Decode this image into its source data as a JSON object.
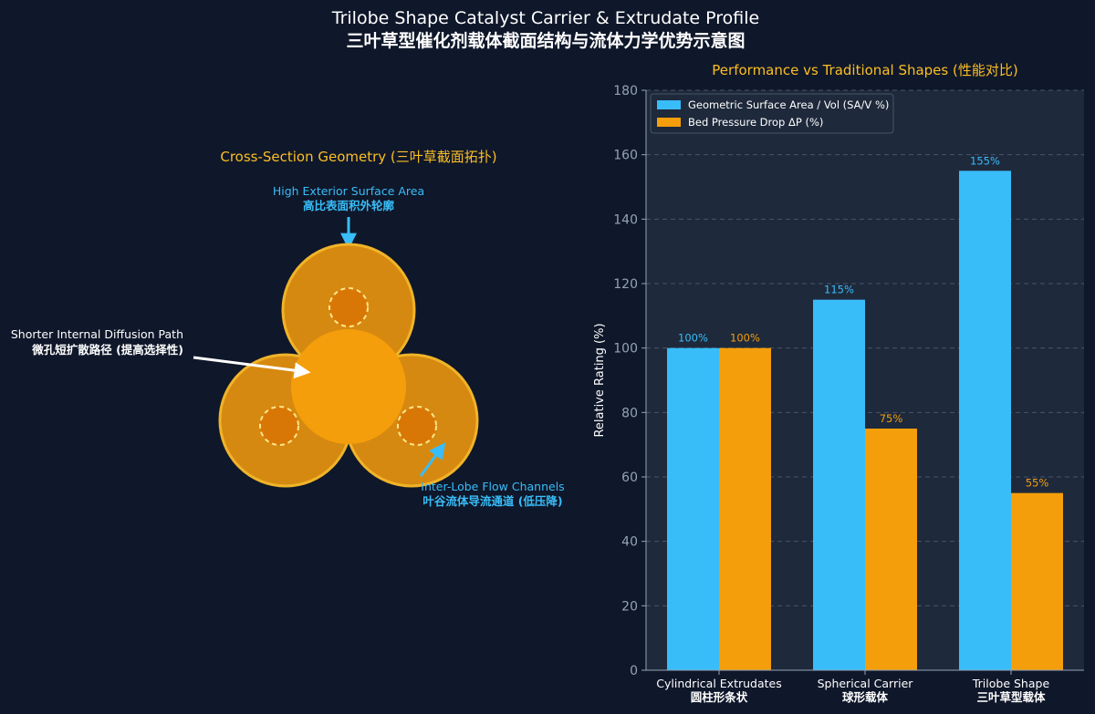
{
  "title": {
    "line1": "Trilobe Shape Catalyst Carrier & Extrudate Profile",
    "line2": "三叶草型催化剂载体截面结构与流体力学优势示意图"
  },
  "diagram": {
    "title": "Cross-Section Geometry (三叶草截面拓扑)",
    "annotations": {
      "surface_en": "High Exterior Surface Area",
      "surface_cn": "高比表面积外轮廓",
      "diffusion_en": "Shorter Internal Diffusion Path",
      "diffusion_cn": "微孔短扩散路径 (提高选择性)",
      "channels_en": "Inter-Lobe Flow Channels",
      "channels_cn": "叶谷流体导流通道 (低压降)"
    }
  },
  "colors": {
    "background": "#0f172a",
    "plot_bg": "#1e293b",
    "blue": "#38bdf8",
    "orange": "#f59e0b",
    "title_gold": "#fbbf24",
    "lobe_fill": "#d68910",
    "lobe_stroke": "#f0b429",
    "hub_fill": "#f59e0b",
    "pore_fill": "#d97706"
  },
  "chart_data": {
    "type": "bar",
    "title": "Performance vs Traditional Shapes (性能对比)",
    "categories": [
      {
        "en": "Cylindrical Extrudates",
        "cn": "圆柱形条状"
      },
      {
        "en": "Spherical Carrier",
        "cn": "球形载体"
      },
      {
        "en": "Trilobe Shape",
        "cn": "三叶草型载体"
      }
    ],
    "series": [
      {
        "name": "Geometric Surface Area / Vol (SA/V %)",
        "values": [
          100,
          115,
          155
        ],
        "labels": [
          "100%",
          "115%",
          "155%"
        ],
        "color": "#38bdf8"
      },
      {
        "name": "Bed Pressure Drop ΔP (%)",
        "values": [
          100,
          75,
          55
        ],
        "labels": [
          "100%",
          "75%",
          "55%"
        ],
        "color": "#f59e0b"
      }
    ],
    "ylabel": "Relative Rating (%)",
    "ylim": [
      0,
      180
    ],
    "yticks": [
      "0",
      "20",
      "40",
      "60",
      "80",
      "100",
      "120",
      "140",
      "160",
      "180"
    ],
    "grid": true,
    "legend": "top-left"
  }
}
